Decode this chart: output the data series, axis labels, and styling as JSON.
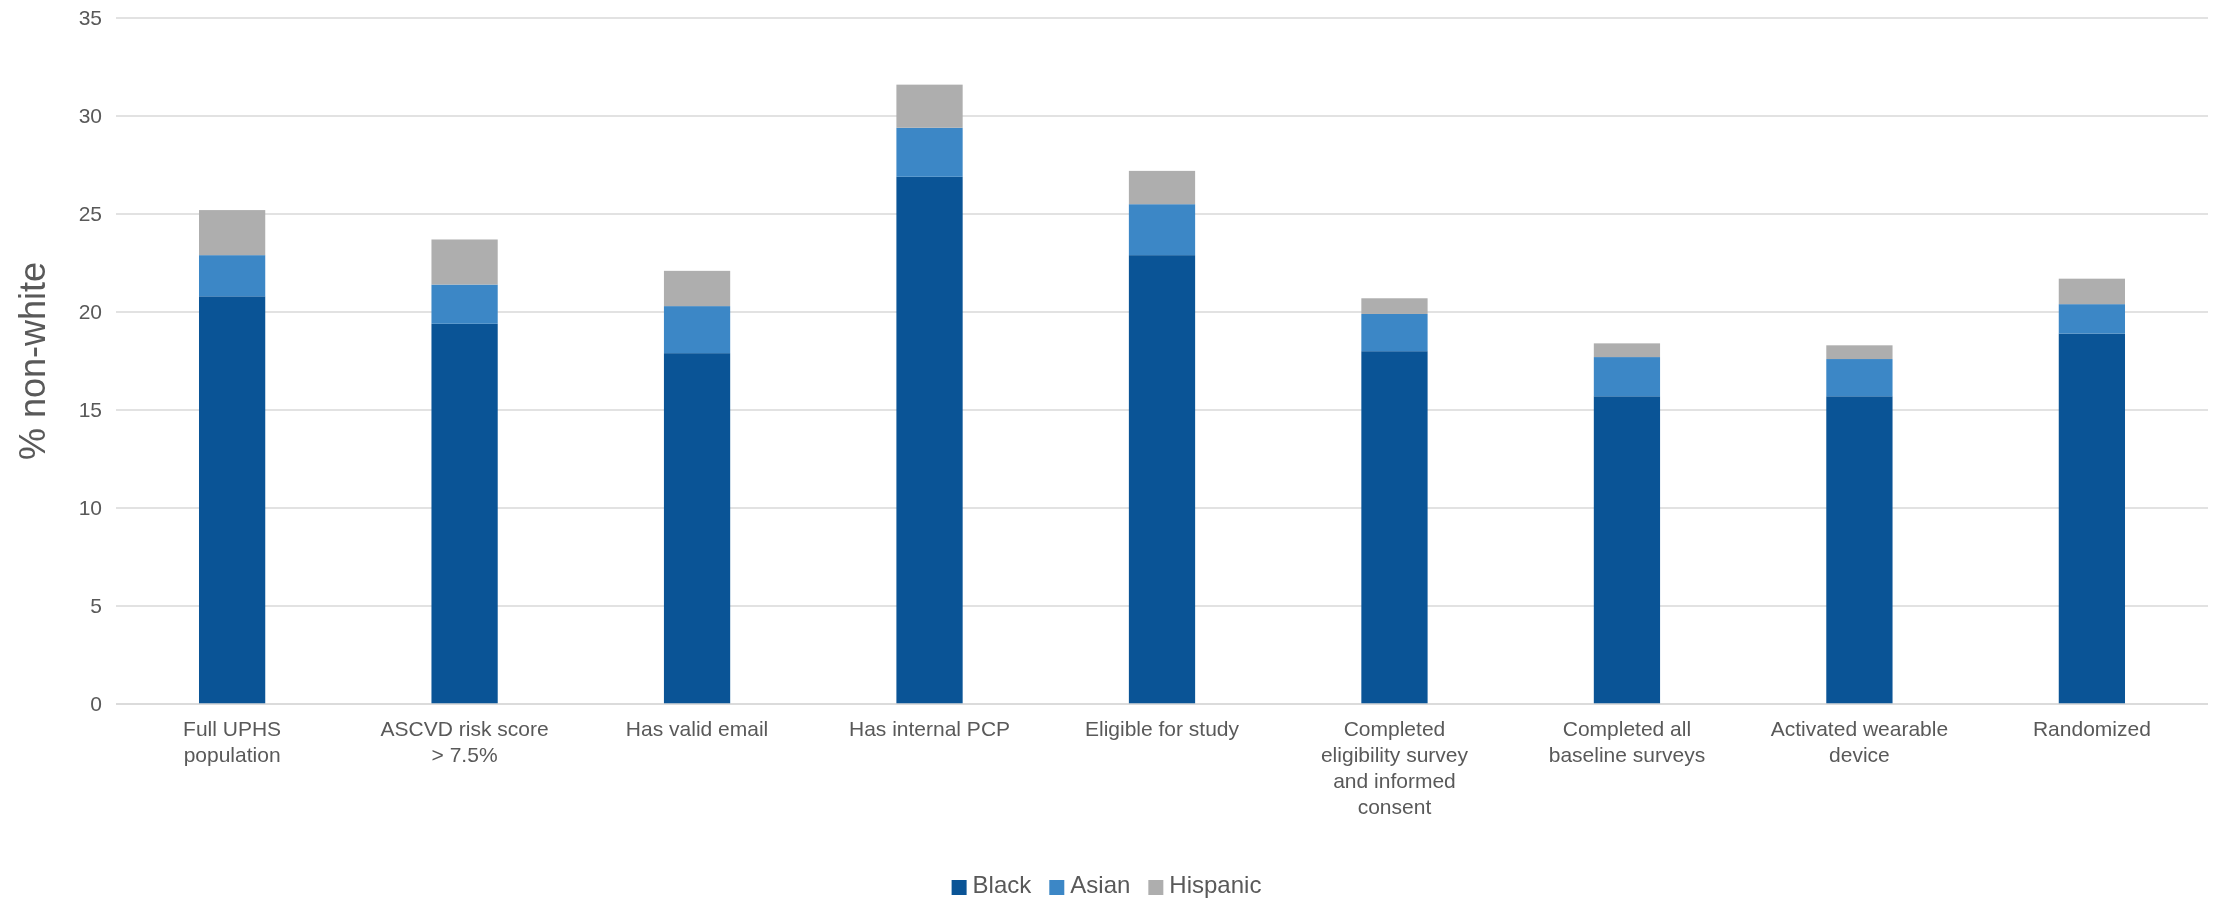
{
  "chart_data": {
    "type": "bar",
    "stacked": true,
    "ylabel": "% non-white",
    "categories": [
      "Full UPHS population",
      "ASCVD risk score > 7.5%",
      "Has valid email",
      "Has internal PCP",
      "Eligible for study",
      "Completed eligibility survey and informed consent",
      "Completed all baseline surveys",
      "Activated wearable device",
      "Randomized"
    ],
    "series": [
      {
        "name": "Black",
        "color": "#0a5496",
        "values": [
          20.8,
          19.4,
          17.9,
          26.9,
          22.9,
          18.0,
          15.7,
          15.7,
          18.9
        ]
      },
      {
        "name": "Asian",
        "color": "#3c87c6",
        "values": [
          2.1,
          2.0,
          2.4,
          2.5,
          2.6,
          1.9,
          2.0,
          1.9,
          1.5
        ]
      },
      {
        "name": "Hispanic",
        "color": "#aeaeae",
        "values": [
          2.3,
          2.3,
          1.8,
          2.2,
          1.7,
          0.8,
          0.7,
          0.7,
          1.3
        ]
      }
    ],
    "ylim": [
      0,
      35
    ],
    "yticks": [
      0,
      5,
      10,
      15,
      20,
      25,
      30,
      35
    ],
    "grid": "y",
    "legend": "bottom"
  }
}
